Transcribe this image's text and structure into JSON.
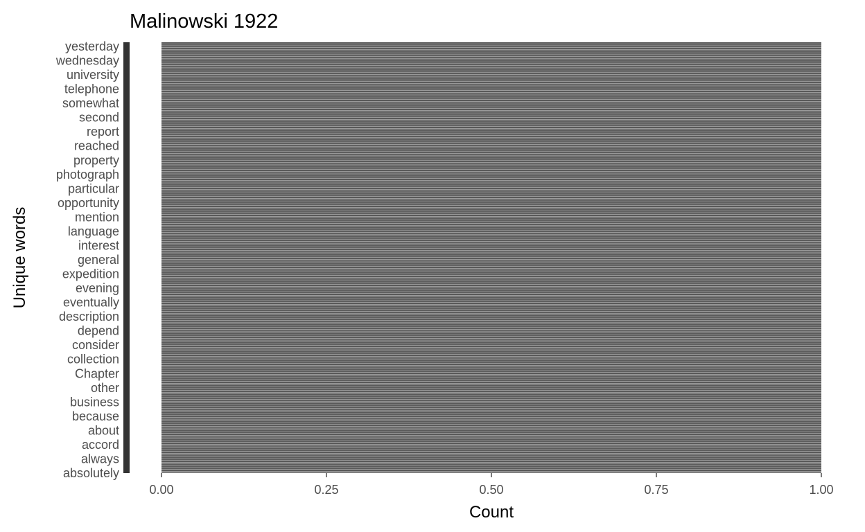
{
  "chart_data": {
    "type": "bar",
    "orientation": "horizontal",
    "title": "Malinowski 1922",
    "xlabel": "Count",
    "ylabel": "Unique words",
    "xlim": [
      0,
      1
    ],
    "xticks": [
      "0.00",
      "0.25",
      "0.50",
      "0.75",
      "1.00"
    ],
    "xtick_values": [
      0,
      0.25,
      0.5,
      0.75,
      1.0
    ],
    "bar_value": 1,
    "bar_color": "#595959",
    "visible_word_labels": [
      "yesterday",
      "wednesday",
      "university",
      "telephone",
      "somewhat",
      "second",
      "report",
      "reached",
      "property",
      "photograph",
      "particular",
      "opportunity",
      "mention",
      "language",
      "interest",
      "general",
      "expedition",
      "evening",
      "eventually",
      "description",
      "depend",
      "consider",
      "collection",
      "Chapter",
      "other",
      "business",
      "because",
      "about",
      "accord",
      "always",
      "absolutely"
    ],
    "grid": false,
    "legend": "none"
  }
}
